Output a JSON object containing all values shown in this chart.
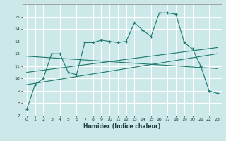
{
  "xlabel": "Humidex (Indice chaleur)",
  "bg_color": "#cce8e8",
  "grid_color": "#ffffff",
  "line_color": "#1a7a6e",
  "xlim": [
    -0.5,
    23.5
  ],
  "ylim": [
    7,
    16
  ],
  "yticks": [
    7,
    8,
    9,
    10,
    11,
    12,
    13,
    14,
    15
  ],
  "xticks": [
    0,
    1,
    2,
    3,
    4,
    5,
    6,
    7,
    8,
    9,
    10,
    11,
    12,
    13,
    14,
    15,
    16,
    17,
    18,
    19,
    20,
    21,
    22,
    23
  ],
  "main_series_x": [
    0,
    1,
    2,
    3,
    4,
    5,
    6,
    7,
    8,
    9,
    10,
    11,
    12,
    13,
    14,
    15,
    16,
    17,
    18,
    19,
    20,
    21,
    22,
    23
  ],
  "main_series_y": [
    7.5,
    9.5,
    10.0,
    12.0,
    12.0,
    10.5,
    10.3,
    12.9,
    12.9,
    13.1,
    13.0,
    12.9,
    13.0,
    14.5,
    13.9,
    13.4,
    15.3,
    15.3,
    15.2,
    12.9,
    12.4,
    11.0,
    9.0,
    8.8
  ],
  "trend1_x": [
    0,
    23
  ],
  "trend1_y": [
    10.5,
    12.5
  ],
  "trend2_x": [
    0,
    23
  ],
  "trend2_y": [
    11.8,
    10.8
  ],
  "trend3_x": [
    0,
    23
  ],
  "trend3_y": [
    9.5,
    12.0
  ]
}
